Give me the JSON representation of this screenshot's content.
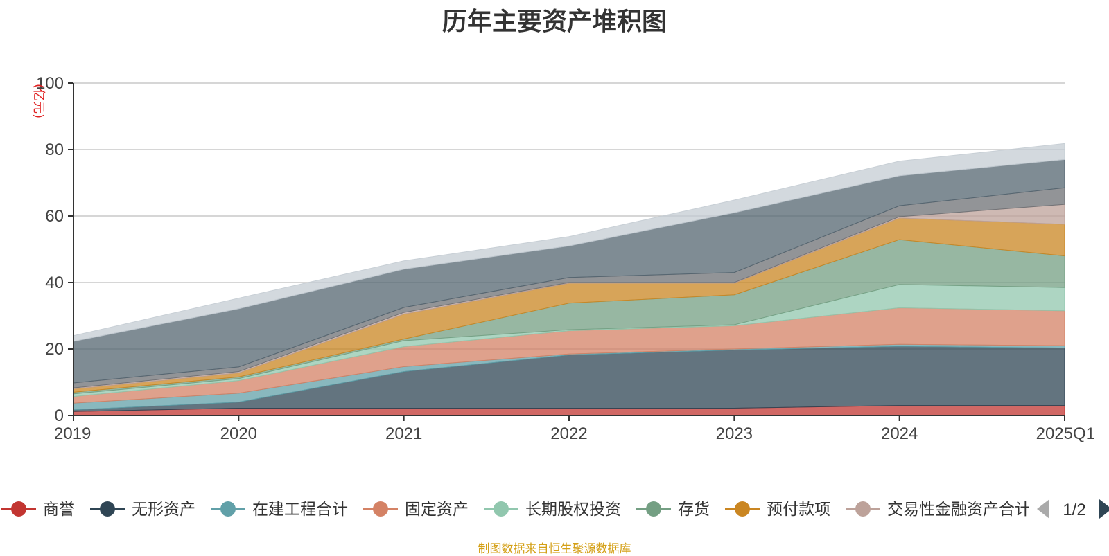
{
  "chart_data": {
    "type": "area",
    "stacked": true,
    "title": "历年主要资产堆积图",
    "unit_label": "(亿元)",
    "categories": [
      "2019",
      "2020",
      "2021",
      "2022",
      "2023",
      "2024",
      "2025Q1"
    ],
    "ylim": [
      0,
      100
    ],
    "yticks": [
      0,
      20,
      40,
      60,
      80,
      100
    ],
    "grid": true,
    "series": [
      {
        "name": "商誉",
        "color": "#c23531",
        "values": [
          1.2,
          2.2,
          2.2,
          2.2,
          2.2,
          3.0,
          3.0
        ]
      },
      {
        "name": "无形资产",
        "color": "#2f4554",
        "values": [
          0.5,
          1.8,
          11.0,
          16.0,
          17.5,
          17.8,
          17.3
        ]
      },
      {
        "name": "在建工程合计",
        "color": "#61a0a8",
        "values": [
          2.0,
          2.7,
          1.5,
          0.3,
          0.3,
          0.6,
          0.7
        ]
      },
      {
        "name": "固定资产",
        "color": "#d48265",
        "values": [
          2.0,
          3.8,
          6.0,
          7.0,
          7.0,
          11.0,
          10.5
        ]
      },
      {
        "name": "长期股权投资",
        "color": "#91c7ae",
        "values": [
          0.8,
          0.6,
          1.8,
          0.3,
          0.3,
          7.0,
          7.0
        ]
      },
      {
        "name": "存货",
        "color": "#749f83",
        "values": [
          0.5,
          0.5,
          0.5,
          8.0,
          9.0,
          13.5,
          9.5
        ]
      },
      {
        "name": "预付款项",
        "color": "#ca8622",
        "values": [
          1.0,
          1.2,
          7.5,
          6.0,
          3.5,
          6.5,
          9.5
        ]
      },
      {
        "name": "交易性金融资产合计",
        "color": "#bda29a",
        "values": [
          0.3,
          0.4,
          0.5,
          0.2,
          0.2,
          0.4,
          6.0
        ]
      },
      {
        "name": "",
        "color": "#6e7074",
        "values": [
          1.5,
          1.4,
          1.5,
          1.5,
          3.0,
          3.3,
          5.0
        ]
      },
      {
        "name": "",
        "color": "#546570",
        "values": [
          12.5,
          17.5,
          11.5,
          9.5,
          18.0,
          9.0,
          8.5
        ]
      },
      {
        "name": "",
        "color": "#c4ccd3",
        "values": [
          1.7,
          3.2,
          2.5,
          2.8,
          3.8,
          4.4,
          4.8
        ]
      }
    ],
    "legend": {
      "position": "bottom",
      "page": "1/2"
    }
  },
  "source_note": "制图数据来自恒生聚源数据库",
  "icons": {
    "prev_page": "triangle-left-icon",
    "next_page": "triangle-right-icon",
    "legend_marker": "circle-line-marker"
  }
}
